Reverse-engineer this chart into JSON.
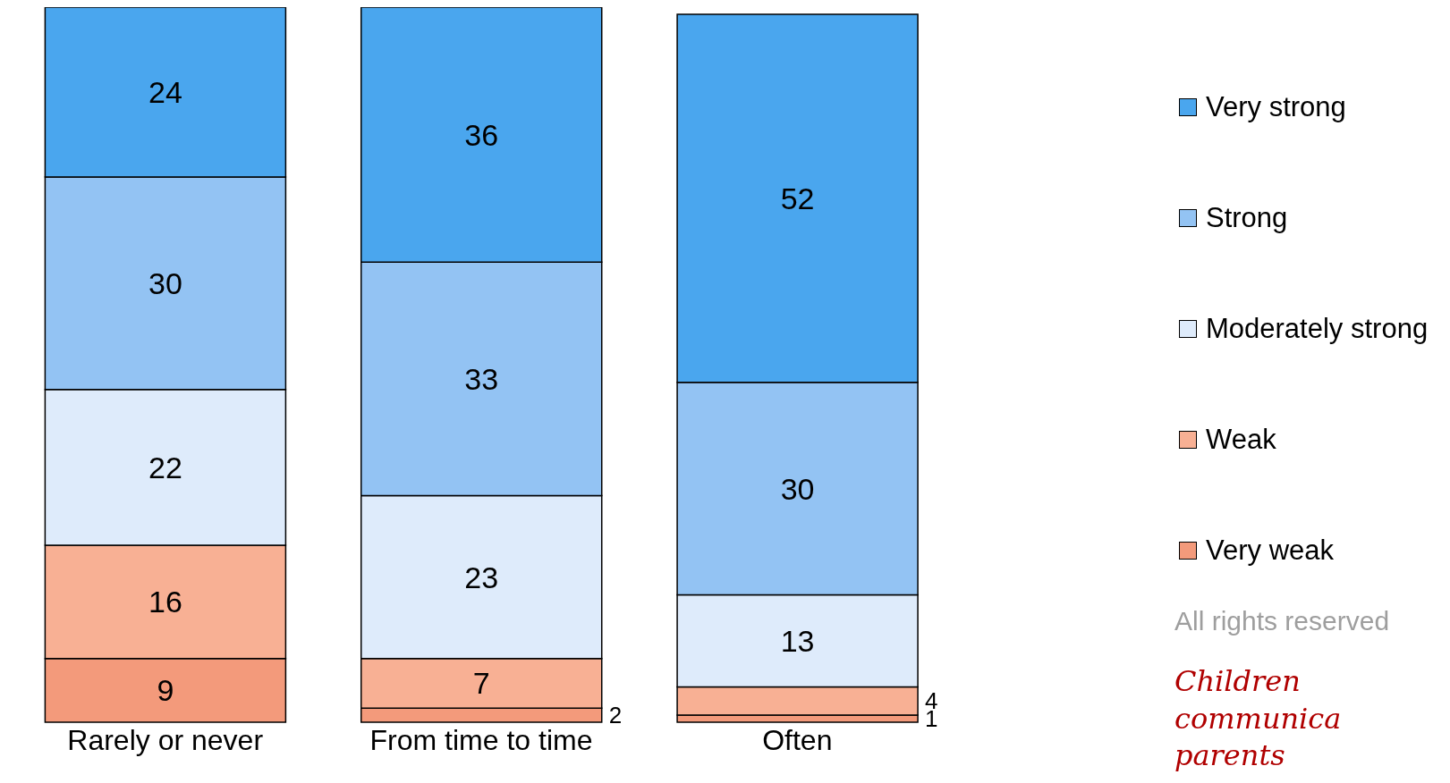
{
  "chart_data": {
    "type": "bar",
    "stacked": true,
    "title": "Children communica parents",
    "categories": [
      "Rarely or never",
      "From time to time",
      "Often"
    ],
    "series": [
      {
        "name": "Very weak",
        "color": "#f39a7b",
        "values": [
          9,
          2,
          1
        ]
      },
      {
        "name": "Weak",
        "color": "#f8b094",
        "values": [
          16,
          7,
          4
        ]
      },
      {
        "name": "Moderately strong",
        "color": "#deebfb",
        "values": [
          22,
          23,
          13
        ]
      },
      {
        "name": "Strong",
        "color": "#93c3f3",
        "values": [
          30,
          33,
          30
        ]
      },
      {
        "name": "Very strong",
        "color": "#4aa6ee",
        "values": [
          24,
          36,
          52
        ]
      }
    ],
    "data_labels": true,
    "legend": "right",
    "grid": false,
    "annotations": [
      "All rights reserved"
    ]
  }
}
